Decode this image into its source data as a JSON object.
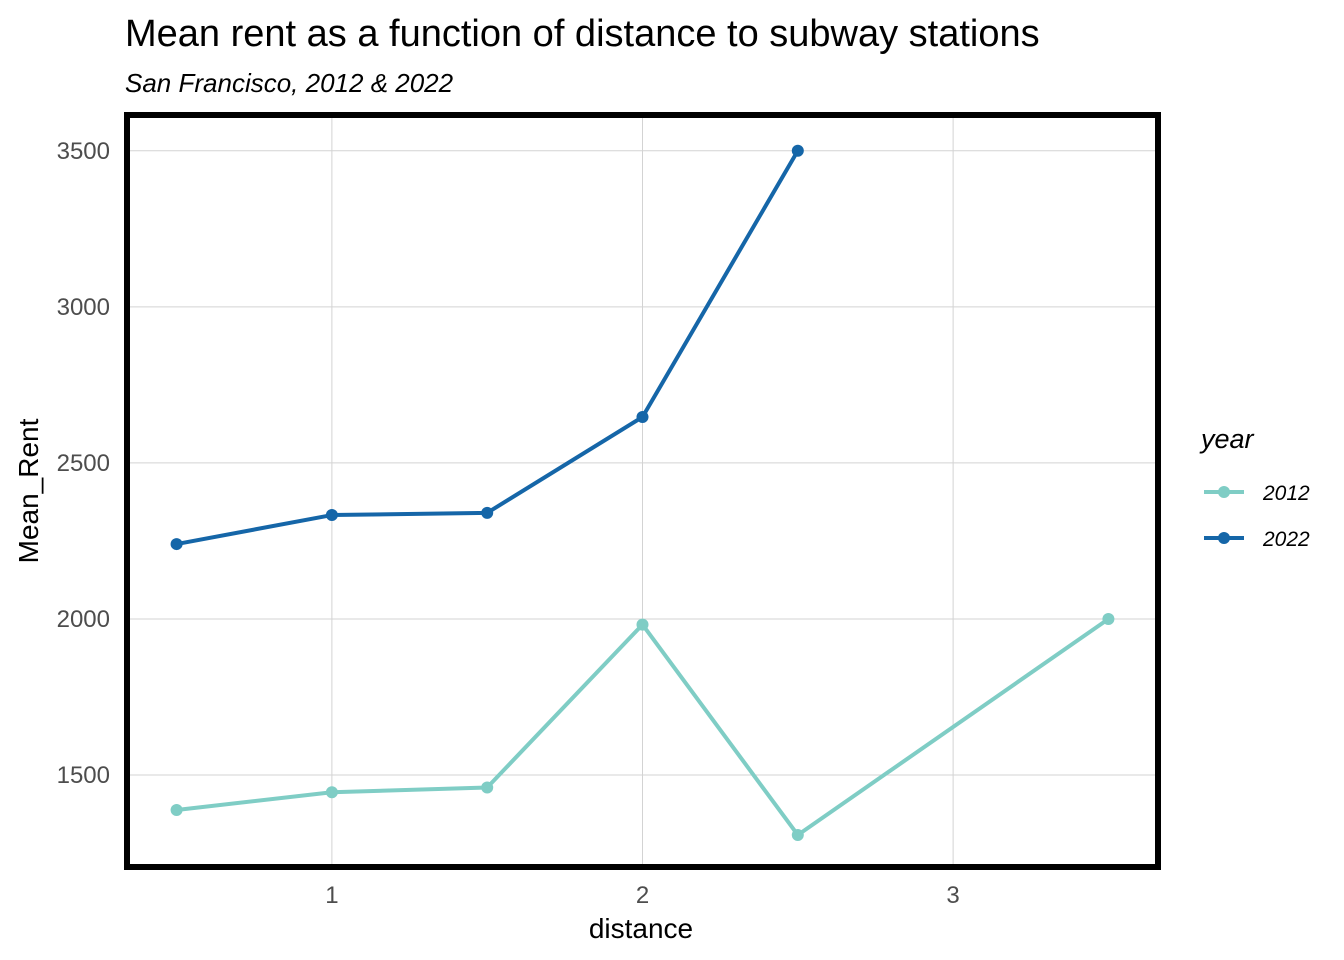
{
  "chart_data": {
    "type": "line",
    "title": "Mean rent as a function of distance to subway stations",
    "subtitle": "San Francisco, 2012 & 2022",
    "xlabel": "distance",
    "ylabel": "Mean_Rent",
    "xlim": [
      0.35,
      3.65
    ],
    "ylim": [
      1215,
      3605
    ],
    "xticks": [
      1,
      2,
      3
    ],
    "yticks": [
      1500,
      2000,
      2500,
      3000,
      3500
    ],
    "grid": true,
    "legend": {
      "title": "year",
      "position": "right"
    },
    "series": [
      {
        "name": "2012",
        "color": "#7fcdc5",
        "x": [
          0.5,
          1.0,
          1.5,
          2.0,
          2.5,
          3.5
        ],
        "values": [
          1388,
          1445,
          1460,
          1982,
          1308,
          2000
        ]
      },
      {
        "name": "2022",
        "color": "#1566a8",
        "x": [
          0.5,
          1.0,
          1.5,
          2.0,
          2.5
        ],
        "values": [
          2240,
          2333,
          2340,
          2647,
          3500
        ]
      }
    ]
  }
}
